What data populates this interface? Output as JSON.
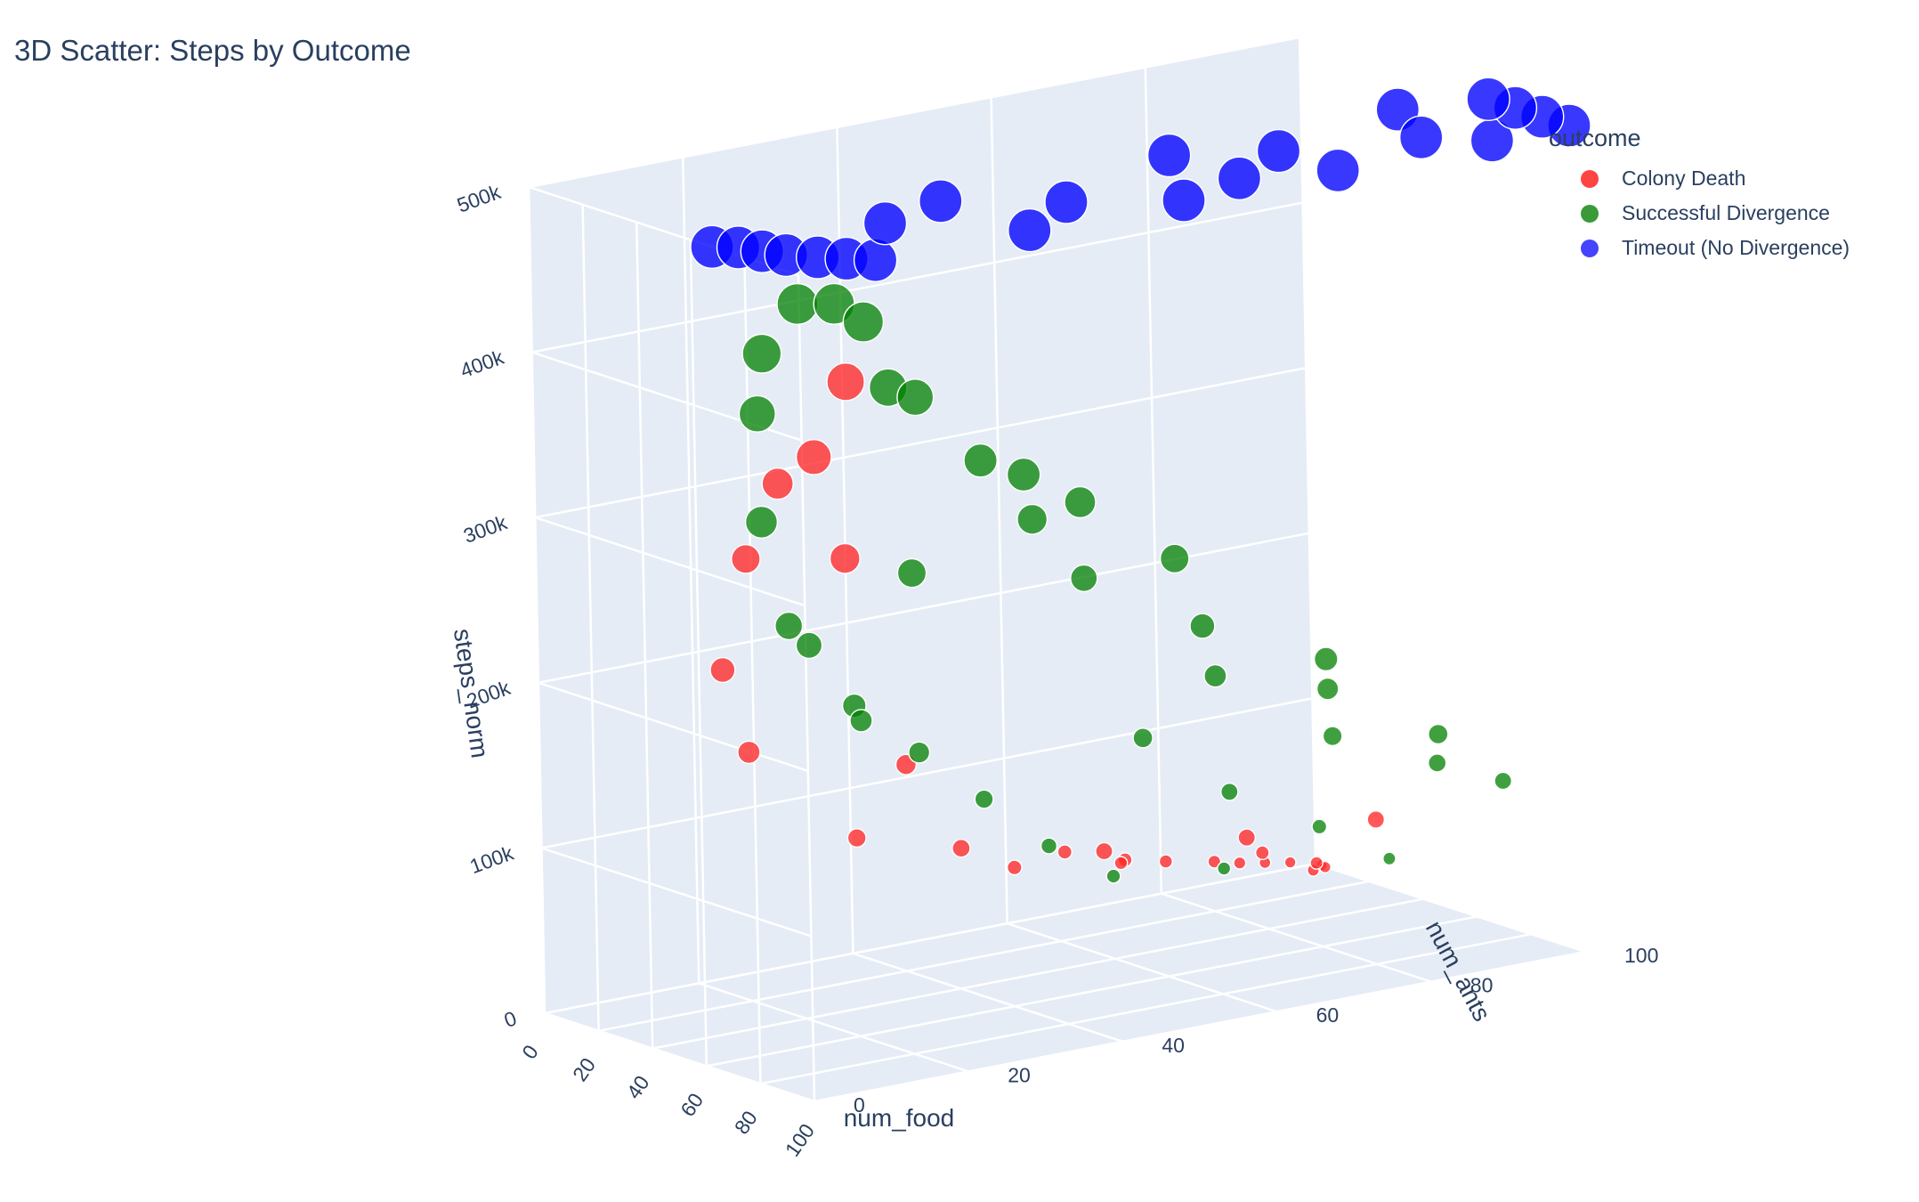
{
  "chart_data": {
    "type": "scatter",
    "title": "3D Scatter: Steps by Outcome",
    "axes": {
      "x": {
        "label": "num_food",
        "range": [
          0,
          100
        ],
        "ticks": [
          "0",
          "20",
          "40",
          "60",
          "80",
          "100"
        ]
      },
      "y": {
        "label": "num_ants",
        "range": [
          0,
          100
        ],
        "ticks": [
          "0",
          "20",
          "40",
          "60",
          "80",
          "100"
        ]
      },
      "z": {
        "label": "steps_norm",
        "range": [
          0,
          500000
        ],
        "ticks": [
          "0",
          "100k",
          "200k",
          "300k",
          "400k",
          "500k"
        ]
      }
    },
    "legend": {
      "title": "outcome",
      "position": "top-right",
      "entries": [
        {
          "name": "Colony Death",
          "color": "#ff0000"
        },
        {
          "name": "Successful Divergence",
          "color": "#008000"
        },
        {
          "name": "Timeout (No Divergence)",
          "color": "#0000ff"
        }
      ]
    },
    "series": [
      {
        "name": "Colony Death",
        "color": "#ff0000",
        "points": [
          {
            "x": 5,
            "y": 95,
            "z": 8000
          },
          {
            "x": 10,
            "y": 90,
            "z": 15000
          },
          {
            "x": 15,
            "y": 85,
            "z": 22000
          },
          {
            "x": 20,
            "y": 80,
            "z": 30000
          },
          {
            "x": 25,
            "y": 72,
            "z": 40000
          },
          {
            "x": 30,
            "y": 65,
            "z": 50000
          },
          {
            "x": 8,
            "y": 98,
            "z": 5000
          },
          {
            "x": 18,
            "y": 95,
            "z": 12000
          },
          {
            "x": 28,
            "y": 90,
            "z": 20000
          },
          {
            "x": 35,
            "y": 88,
            "z": 30000
          },
          {
            "x": 38,
            "y": 80,
            "z": 45000
          },
          {
            "x": 22,
            "y": 60,
            "z": 55000
          },
          {
            "x": 14,
            "y": 70,
            "z": 35000
          },
          {
            "x": 32,
            "y": 50,
            "z": 60000
          },
          {
            "x": 33,
            "y": 20,
            "z": 320000
          },
          {
            "x": 35,
            "y": 15,
            "z": 280000
          },
          {
            "x": 40,
            "y": 10,
            "z": 220000
          },
          {
            "x": 55,
            "y": 8,
            "z": 180000
          },
          {
            "x": 60,
            "y": 20,
            "z": 120000
          },
          {
            "x": 70,
            "y": 30,
            "z": 110000
          },
          {
            "x": 80,
            "y": 45,
            "z": 100000
          },
          {
            "x": 90,
            "y": 60,
            "z": 100000
          },
          {
            "x": 95,
            "y": 75,
            "z": 100000
          },
          {
            "x": 90,
            "y": 5,
            "z": 380000
          },
          {
            "x": 88,
            "y": 10,
            "z": 420000
          },
          {
            "x": 72,
            "y": 15,
            "z": 300000
          },
          {
            "x": 50,
            "y": 30,
            "z": 150000
          }
        ]
      },
      {
        "name": "Successful Divergence",
        "color": "#008000",
        "points": [
          {
            "x": 40,
            "y": 60,
            "z": 50000
          },
          {
            "x": 45,
            "y": 50,
            "z": 80000
          },
          {
            "x": 50,
            "y": 40,
            "z": 120000
          },
          {
            "x": 55,
            "y": 30,
            "z": 160000
          },
          {
            "x": 60,
            "y": 20,
            "z": 200000
          },
          {
            "x": 65,
            "y": 10,
            "z": 260000
          },
          {
            "x": 70,
            "y": 5,
            "z": 330000
          },
          {
            "x": 75,
            "y": 3,
            "z": 400000
          },
          {
            "x": 80,
            "y": 2,
            "z": 440000
          },
          {
            "x": 85,
            "y": 5,
            "z": 470000
          },
          {
            "x": 90,
            "y": 8,
            "z": 470000
          },
          {
            "x": 95,
            "y": 10,
            "z": 460000
          },
          {
            "x": 98,
            "y": 12,
            "z": 420000
          },
          {
            "x": 96,
            "y": 30,
            "z": 350000
          },
          {
            "x": 94,
            "y": 50,
            "z": 280000
          },
          {
            "x": 92,
            "y": 70,
            "z": 200000
          },
          {
            "x": 90,
            "y": 85,
            "z": 140000
          },
          {
            "x": 85,
            "y": 95,
            "z": 100000
          },
          {
            "x": 75,
            "y": 90,
            "z": 110000
          },
          {
            "x": 65,
            "y": 80,
            "z": 130000
          },
          {
            "x": 55,
            "y": 70,
            "z": 100000
          },
          {
            "x": 45,
            "y": 85,
            "z": 60000
          },
          {
            "x": 38,
            "y": 75,
            "z": 40000
          },
          {
            "x": 42,
            "y": 95,
            "z": 30000
          },
          {
            "x": 60,
            "y": 50,
            "z": 250000
          },
          {
            "x": 70,
            "y": 40,
            "z": 300000
          },
          {
            "x": 80,
            "y": 30,
            "z": 350000
          },
          {
            "x": 85,
            "y": 20,
            "z": 400000
          },
          {
            "x": 75,
            "y": 60,
            "z": 220000
          },
          {
            "x": 65,
            "y": 65,
            "z": 180000
          },
          {
            "x": 88,
            "y": 40,
            "z": 320000
          },
          {
            "x": 78,
            "y": 75,
            "z": 170000
          },
          {
            "x": 68,
            "y": 25,
            "z": 280000
          },
          {
            "x": 58,
            "y": 15,
            "z": 240000
          },
          {
            "x": 52,
            "y": 60,
            "z": 140000
          },
          {
            "x": 48,
            "y": 25,
            "z": 180000
          }
        ]
      },
      {
        "name": "Timeout (No Divergence)",
        "color": "#0000ff",
        "points": [
          {
            "x": 68,
            "y": 0,
            "z": 500000
          },
          {
            "x": 72,
            "y": 2,
            "z": 500000
          },
          {
            "x": 78,
            "y": 3,
            "z": 500000
          },
          {
            "x": 84,
            "y": 4,
            "z": 500000
          },
          {
            "x": 90,
            "y": 6,
            "z": 500000
          },
          {
            "x": 95,
            "y": 8,
            "z": 500000
          },
          {
            "x": 100,
            "y": 10,
            "z": 500000
          },
          {
            "x": 100,
            "y": 30,
            "z": 500000
          },
          {
            "x": 100,
            "y": 50,
            "z": 500000
          },
          {
            "x": 100,
            "y": 70,
            "z": 500000
          },
          {
            "x": 100,
            "y": 90,
            "z": 500000
          },
          {
            "x": 100,
            "y": 100,
            "z": 500000
          },
          {
            "x": 90,
            "y": 100,
            "z": 500000
          },
          {
            "x": 80,
            "y": 100,
            "z": 500000
          },
          {
            "x": 70,
            "y": 100,
            "z": 500000
          },
          {
            "x": 65,
            "y": 90,
            "z": 500000
          },
          {
            "x": 66,
            "y": 60,
            "z": 500000
          },
          {
            "x": 67,
            "y": 30,
            "z": 500000
          },
          {
            "x": 75,
            "y": 20,
            "z": 500000
          },
          {
            "x": 85,
            "y": 40,
            "z": 500000
          },
          {
            "x": 78,
            "y": 70,
            "z": 500000
          },
          {
            "x": 92,
            "y": 60,
            "z": 500000
          },
          {
            "x": 88,
            "y": 85,
            "z": 500000
          }
        ]
      }
    ]
  }
}
